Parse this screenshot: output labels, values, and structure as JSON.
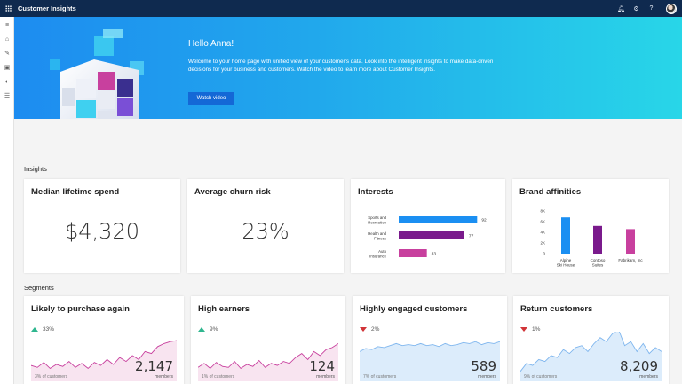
{
  "app": {
    "title": "Customer Insights"
  },
  "topbar": {
    "icons": [
      "bell-icon",
      "gear-icon",
      "help-icon"
    ]
  },
  "nav": {
    "icons": [
      "hamburger-icon",
      "home-icon",
      "pen-icon",
      "segment-icon",
      "insights-icon",
      "data-icon"
    ]
  },
  "hero": {
    "greeting": "Hello Anna!",
    "text": "Welcome to your home page with unified view of your customer's data. Look into the intelligent insights to make data-driven decisions for your business and customers.  Watch the video to learn more about Customer Insights.",
    "button": "Watch video"
  },
  "insights": {
    "label": "Insights",
    "median": {
      "title": "Median lifetime spend",
      "value": "$4,320"
    },
    "churn": {
      "title": "Average churn risk",
      "value": "23%"
    },
    "interests": {
      "title": "Interests",
      "chart_data": {
        "type": "bar",
        "orientation": "horizontal",
        "categories": [
          "Sports and Recreation",
          "Health and Fitness",
          "Auto Insurance"
        ],
        "values": [
          92,
          77,
          33
        ],
        "colors": [
          "#1b8ff2",
          "#7a1a8c",
          "#c8409e"
        ]
      }
    },
    "brands": {
      "title": "Brand affinities",
      "chart_data": {
        "type": "bar",
        "categories": [
          "Alpine Ski House",
          "Contoso Suites",
          "Fabrikam, Inc"
        ],
        "values": [
          6.8,
          5.2,
          4.6
        ],
        "ylim": [
          0,
          8
        ],
        "yticks": [
          "0",
          "2K",
          "4K",
          "6K",
          "8K"
        ],
        "colors": [
          "#1b8ff2",
          "#7a1a8c",
          "#c8409e"
        ]
      }
    }
  },
  "segments": {
    "label": "Segments",
    "items": [
      {
        "title": "Likely to purchase again",
        "change": "33%",
        "direction": "up",
        "pct": "3% of customers",
        "count": "2,147",
        "members": "members",
        "color": "#c8409e",
        "fill": "#f8e4f0",
        "spark": [
          16,
          14,
          19,
          13,
          17,
          15,
          20,
          14,
          18,
          13,
          19,
          16,
          22,
          17,
          24,
          20,
          26,
          22,
          30,
          28,
          35,
          38,
          40,
          41
        ]
      },
      {
        "title": "High earners",
        "change": "9%",
        "direction": "up",
        "pct": "1% of customers",
        "count": "124",
        "members": "members",
        "color": "#c8409e",
        "fill": "#f8e4f0",
        "spark": [
          14,
          18,
          13,
          19,
          15,
          14,
          20,
          13,
          17,
          15,
          21,
          14,
          18,
          16,
          20,
          18,
          24,
          28,
          22,
          30,
          26,
          32,
          34,
          38
        ]
      },
      {
        "title": "Highly engaged customers",
        "change": "2%",
        "direction": "down",
        "pct": "7% of customers",
        "count": "589",
        "members": "members",
        "color": "#7fb6ee",
        "fill": "#dcecfb",
        "spark": [
          30,
          33,
          32,
          35,
          34,
          36,
          38,
          36,
          37,
          36,
          38,
          36,
          37,
          35,
          38,
          36,
          37,
          39,
          38,
          40,
          37,
          39,
          38,
          40
        ]
      },
      {
        "title": "Return customers",
        "change": "1%",
        "direction": "down",
        "pct": "9% of customers",
        "count": "8,209",
        "members": "members",
        "color": "#7fb6ee",
        "fill": "#dcecfb",
        "spark": [
          10,
          18,
          16,
          22,
          20,
          26,
          24,
          32,
          28,
          34,
          36,
          30,
          38,
          44,
          40,
          48,
          52,
          36,
          40,
          30,
          38,
          28,
          34,
          30
        ]
      }
    ]
  }
}
